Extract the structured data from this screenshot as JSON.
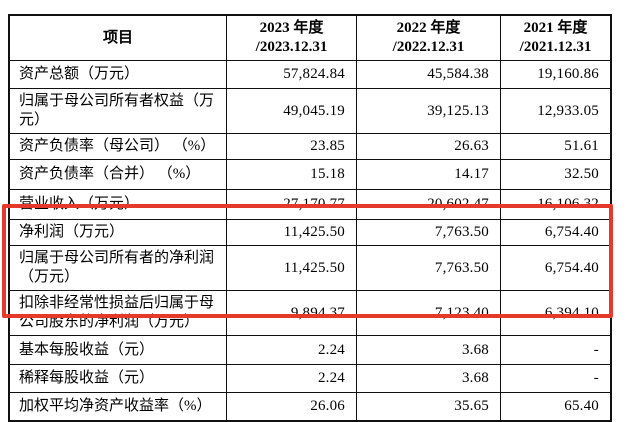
{
  "highlight": {
    "color": "#e53a2b",
    "covers_row_indexes": [
      5,
      6,
      7
    ]
  },
  "table": {
    "header": {
      "item_label": "项目",
      "year_columns": [
        {
          "line1": "2023 年度",
          "line2": "/2023.12.31"
        },
        {
          "line1": "2022 年度",
          "line2": "/2022.12.31"
        },
        {
          "line1": "2021 年度",
          "line2": "/2021.12.31"
        }
      ]
    },
    "rows": [
      {
        "item": "资产总额（万元）",
        "values": [
          "57,824.84",
          "45,584.38",
          "19,160.86"
        ]
      },
      {
        "item": "归属于母公司所有者权益（万元）",
        "values": [
          "49,045.19",
          "39,125.13",
          "12,933.05"
        ]
      },
      {
        "item": "资产负债率（母公司） （%）",
        "values": [
          "23.85",
          "26.63",
          "51.61"
        ]
      },
      {
        "item": "资产负债率（合并） （%）",
        "values": [
          "15.18",
          "14.17",
          "32.50"
        ]
      },
      {
        "item": "营业收入（万元）",
        "values": [
          "27,170.77",
          "20,602.47",
          "16,106.32"
        ]
      },
      {
        "item": "净利润（万元）",
        "values": [
          "11,425.50",
          "7,763.50",
          "6,754.40"
        ]
      },
      {
        "item": "归属于母公司所有者的净利润（万元）",
        "values": [
          "11,425.50",
          "7,763.50",
          "6,754.40"
        ]
      },
      {
        "item": "扣除非经常性损益后归属于母公司股东的净利润（万元）",
        "values": [
          "9,894.37",
          "7,123.40",
          "6,394.10"
        ]
      },
      {
        "item": "基本每股收益（元）",
        "values": [
          "2.24",
          "3.68",
          "-"
        ]
      },
      {
        "item": "稀释每股收益（元）",
        "values": [
          "2.24",
          "3.68",
          "-"
        ]
      },
      {
        "item": "加权平均净资产收益率（%）",
        "values": [
          "26.06",
          "35.65",
          "65.40"
        ]
      }
    ]
  }
}
